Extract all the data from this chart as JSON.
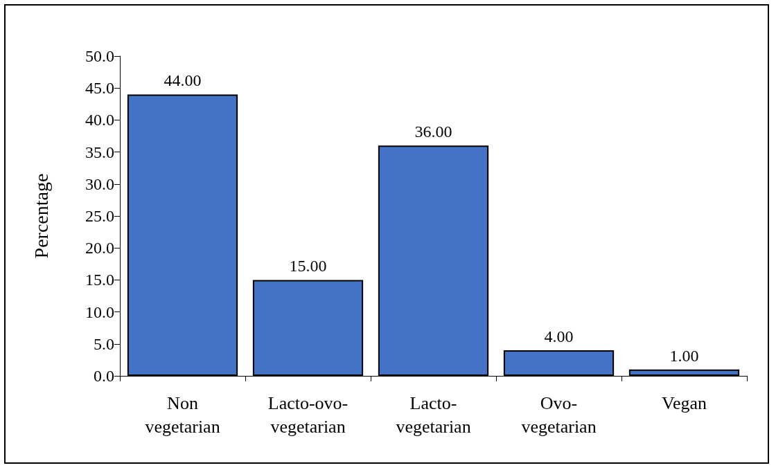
{
  "chart_data": {
    "type": "bar",
    "ylabel": "Percentage",
    "categories": [
      "Non\nvegetarian",
      "Lacto-ovo-\nvegetarian",
      "Lacto-\nvegetarian",
      "Ovo-\nvegetarian",
      "Vegan"
    ],
    "values": [
      44,
      15,
      36,
      4,
      1
    ],
    "value_labels": [
      "44.00",
      "15.00",
      "36.00",
      "4.00",
      "1.00"
    ],
    "color": "#4472c4",
    "ylim": [
      0,
      50
    ],
    "yticks": [
      {
        "value": 0,
        "label": "0.0"
      },
      {
        "value": 5,
        "label": "5.0"
      },
      {
        "value": 10,
        "label": "10.0"
      },
      {
        "value": 15,
        "label": "15.0"
      },
      {
        "value": 20,
        "label": "20.0"
      },
      {
        "value": 25,
        "label": "25.0"
      },
      {
        "value": 30,
        "label": "30.0"
      },
      {
        "value": 35,
        "label": "35.0"
      },
      {
        "value": 40,
        "label": "40.0"
      },
      {
        "value": 45,
        "label": "45.0"
      },
      {
        "value": 50,
        "label": "50.0"
      }
    ],
    "grid": false
  }
}
